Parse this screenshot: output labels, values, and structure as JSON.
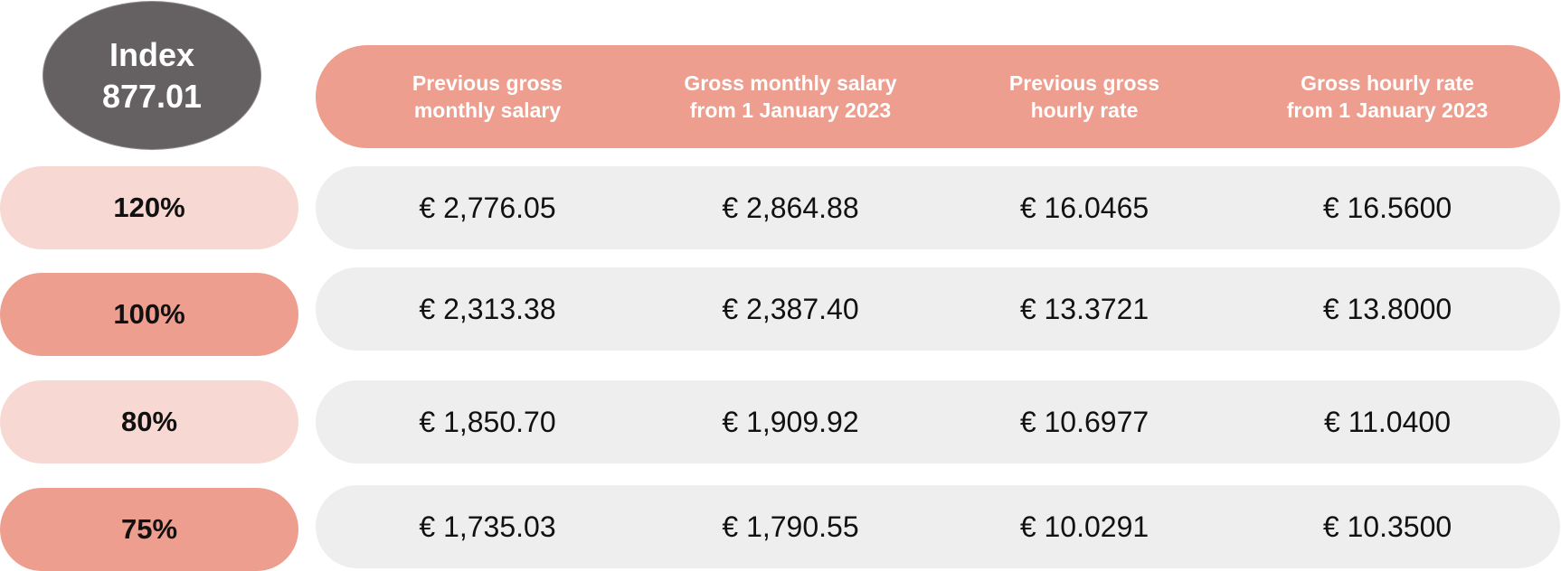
{
  "index": {
    "label": "Index",
    "value": "877.01"
  },
  "headers": [
    "Previous gross\nmonthly salary",
    "Gross monthly salary\nfrom 1 January 2023",
    "Previous gross\nhourly rate",
    "Gross hourly rate\nfrom 1 January 2023"
  ],
  "rows": [
    {
      "label": "120%",
      "values": [
        "€ 2,776.05",
        "€ 2,864.88",
        "€ 16.0465",
        "€ 16.5600"
      ]
    },
    {
      "label": "100%",
      "values": [
        "€ 2,313.38",
        "€ 2,387.40",
        "€ 13.3721",
        "€ 13.8000"
      ]
    },
    {
      "label": "80%",
      "values": [
        "€ 1,850.70",
        "€ 1,909.92",
        "€ 10.6977",
        "€ 11.0400"
      ]
    },
    {
      "label": "75%",
      "values": [
        "€ 1,735.03",
        "€ 1,790.55",
        "€ 10.0291",
        "€ 10.3500"
      ]
    }
  ],
  "colors": {
    "index_badge": "#656162",
    "header": "#ed9e8e",
    "label_light": "#f8d8d3",
    "label_dark": "#ed9e8e",
    "row_background": "#eeeeee"
  }
}
